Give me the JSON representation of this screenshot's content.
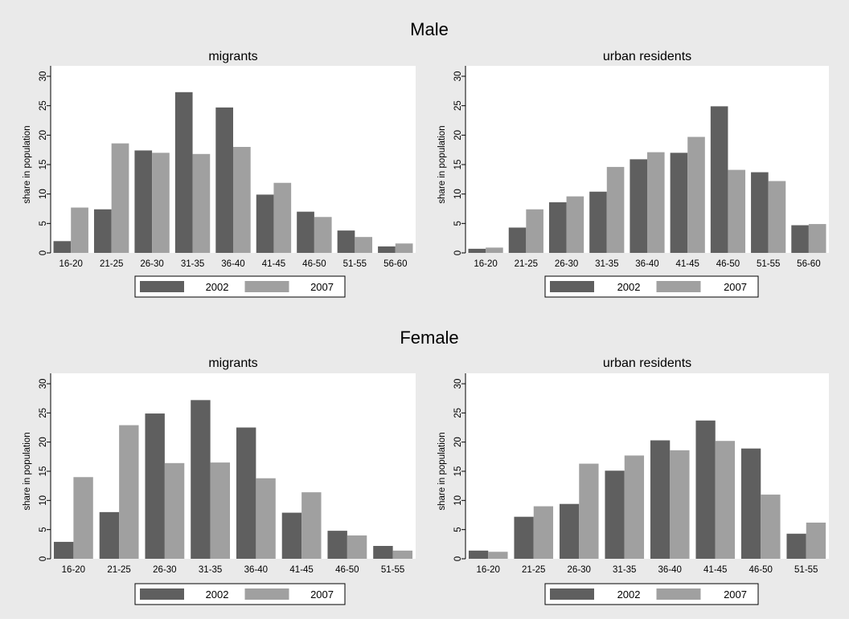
{
  "colors": {
    "background": "#eaeaea",
    "plot_bg": "#ffffff",
    "series_2002": "#5f5f5f",
    "series_2007": "#a0a0a0",
    "axis": "#000000"
  },
  "titles": {
    "male": "Male",
    "female": "Female"
  },
  "chart_data": [
    {
      "type": "bar",
      "group": "Male",
      "title": "migrants",
      "xlabel": "",
      "ylabel": "share in population",
      "ylim": [
        0,
        30
      ],
      "yticks": [
        0,
        5,
        10,
        15,
        20,
        25,
        30
      ],
      "grid": false,
      "legend": "bottom",
      "categories": [
        "16-20",
        "21-25",
        "26-30",
        "31-35",
        "36-40",
        "41-45",
        "46-50",
        "51-55",
        "56-60"
      ],
      "series": [
        {
          "name": "2002",
          "values": [
            2.0,
            7.4,
            17.4,
            27.3,
            24.7,
            9.9,
            7.0,
            3.8,
            1.1
          ]
        },
        {
          "name": "2007",
          "values": [
            7.7,
            18.6,
            17.0,
            16.8,
            18.0,
            11.9,
            6.1,
            2.7,
            1.6
          ]
        }
      ]
    },
    {
      "type": "bar",
      "group": "Male",
      "title": "urban residents",
      "xlabel": "",
      "ylabel": "share in population",
      "ylim": [
        0,
        30
      ],
      "yticks": [
        0,
        5,
        10,
        15,
        20,
        25,
        30
      ],
      "grid": false,
      "legend": "bottom",
      "categories": [
        "16-20",
        "21-25",
        "26-30",
        "31-35",
        "36-40",
        "41-45",
        "46-50",
        "51-55",
        "56-60"
      ],
      "series": [
        {
          "name": "2002",
          "values": [
            0.7,
            4.3,
            8.6,
            10.4,
            15.9,
            17.0,
            24.9,
            13.7,
            4.7
          ]
        },
        {
          "name": "2007",
          "values": [
            0.9,
            7.4,
            9.6,
            14.6,
            17.1,
            19.7,
            14.1,
            12.2,
            4.9
          ]
        }
      ]
    },
    {
      "type": "bar",
      "group": "Female",
      "title": "migrants",
      "xlabel": "",
      "ylabel": "share in population",
      "ylim": [
        0,
        30
      ],
      "yticks": [
        0,
        5,
        10,
        15,
        20,
        25,
        30
      ],
      "grid": false,
      "legend": "bottom",
      "categories": [
        "16-20",
        "21-25",
        "26-30",
        "31-35",
        "36-40",
        "41-45",
        "46-50",
        "51-55"
      ],
      "series": [
        {
          "name": "2002",
          "values": [
            2.9,
            8.0,
            24.9,
            27.2,
            22.5,
            7.9,
            4.8,
            2.2
          ]
        },
        {
          "name": "2007",
          "values": [
            14.0,
            22.9,
            16.4,
            16.5,
            13.8,
            11.4,
            4.0,
            1.4
          ]
        }
      ]
    },
    {
      "type": "bar",
      "group": "Female",
      "title": "urban residents",
      "xlabel": "",
      "ylabel": "share in population",
      "ylim": [
        0,
        30
      ],
      "yticks": [
        0,
        5,
        10,
        15,
        20,
        25,
        30
      ],
      "grid": false,
      "legend": "bottom",
      "categories": [
        "16-20",
        "21-25",
        "26-30",
        "31-35",
        "36-40",
        "41-45",
        "46-50",
        "51-55"
      ],
      "series": [
        {
          "name": "2002",
          "values": [
            1.4,
            7.2,
            9.4,
            15.1,
            20.3,
            23.7,
            18.9,
            4.3
          ]
        },
        {
          "name": "2007",
          "values": [
            1.2,
            9.0,
            16.3,
            17.7,
            18.6,
            20.2,
            11.0,
            6.2
          ]
        }
      ]
    }
  ]
}
